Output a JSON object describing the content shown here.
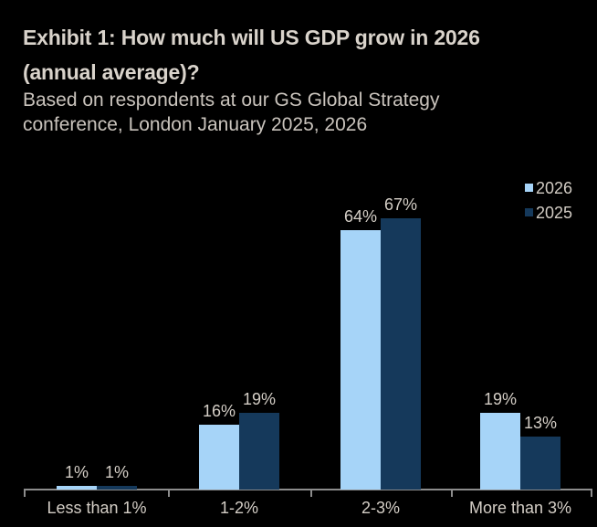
{
  "header": {
    "title_line1": "Exhibit 1: How much will US GDP grow in 2026",
    "title_line2": "(annual average)?",
    "subtitle_line1": "Based on respondents at our GS Global Strategy",
    "subtitle_line2": "conference, London January 2025, 2026"
  },
  "chart_data": {
    "type": "bar",
    "title": "Exhibit 1: How much will US GDP grow in 2026 (annual average)?",
    "subtitle": "Based on respondents at our GS Global Strategy conference, London January 2025, 2026",
    "categories": [
      "Less than 1%",
      "1-2%",
      "2-3%",
      "More than 3%"
    ],
    "series": [
      {
        "name": "2026",
        "color": "#a6d4f8",
        "values": [
          1,
          16,
          64,
          19
        ]
      },
      {
        "name": "2025",
        "color": "#15395b",
        "values": [
          1,
          19,
          67,
          13
        ]
      }
    ],
    "value_suffix": "%",
    "xlabel": "",
    "ylabel": "",
    "ylim": [
      0,
      75
    ],
    "grid": false,
    "legend_position": "top-right",
    "colors": {
      "background": "#000000",
      "axis": "#8c8c8c",
      "label_text": "#d4cec6",
      "title_text": "#d9d3cb"
    }
  }
}
